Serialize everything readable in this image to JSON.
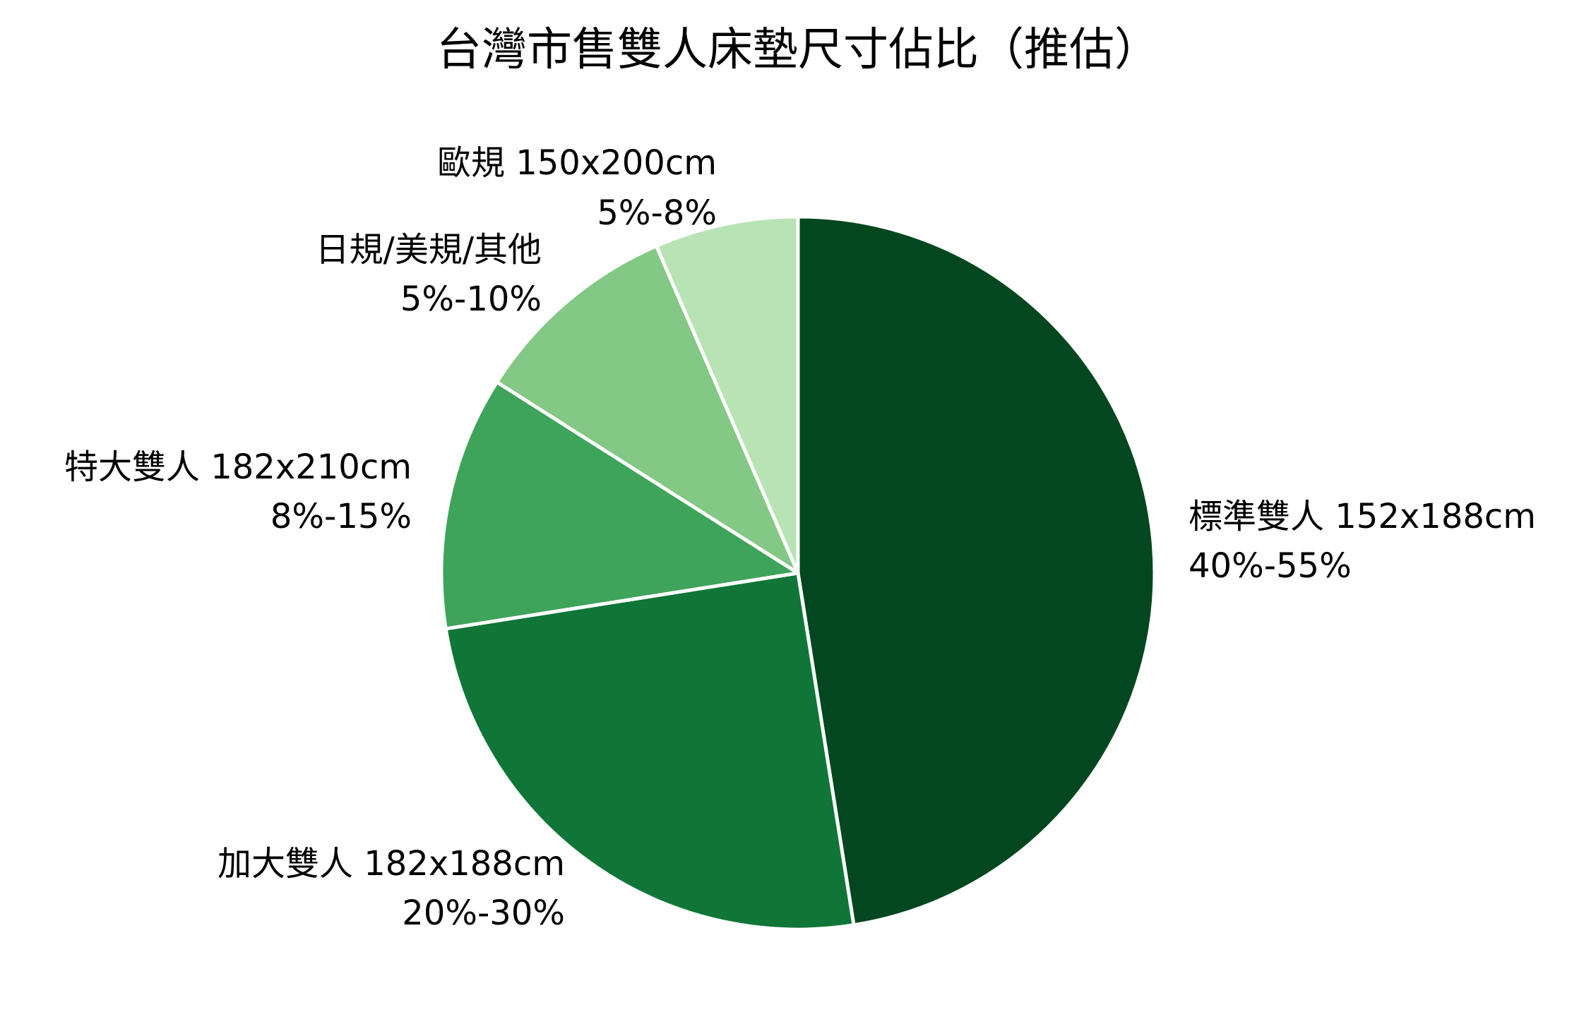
{
  "chart_data": {
    "type": "pie",
    "title": "台灣市售雙人床墊尺寸佔比（推估）",
    "slices": [
      {
        "label": "標準雙人 152x188cm",
        "range": "40%-55%",
        "value": 47.5,
        "color": "#02471F"
      },
      {
        "label": "加大雙人 182x188cm",
        "range": "20%-30%",
        "value": 25,
        "color": "#0F7637"
      },
      {
        "label": "特大雙人 182x210cm",
        "range": "8%-15%",
        "value": 11.5,
        "color": "#3EA45A"
      },
      {
        "label": "日規/美規/其他",
        "range": "5%-10%",
        "value": 9.5,
        "color": "#83C884"
      },
      {
        "label": "歐規 150x200cm",
        "range": "5%-8%",
        "value": 6.5,
        "color": "#B8E3B4"
      }
    ],
    "start": "12 o'clock",
    "direction": "clockwise",
    "legend": "none (labels beside slices)"
  }
}
